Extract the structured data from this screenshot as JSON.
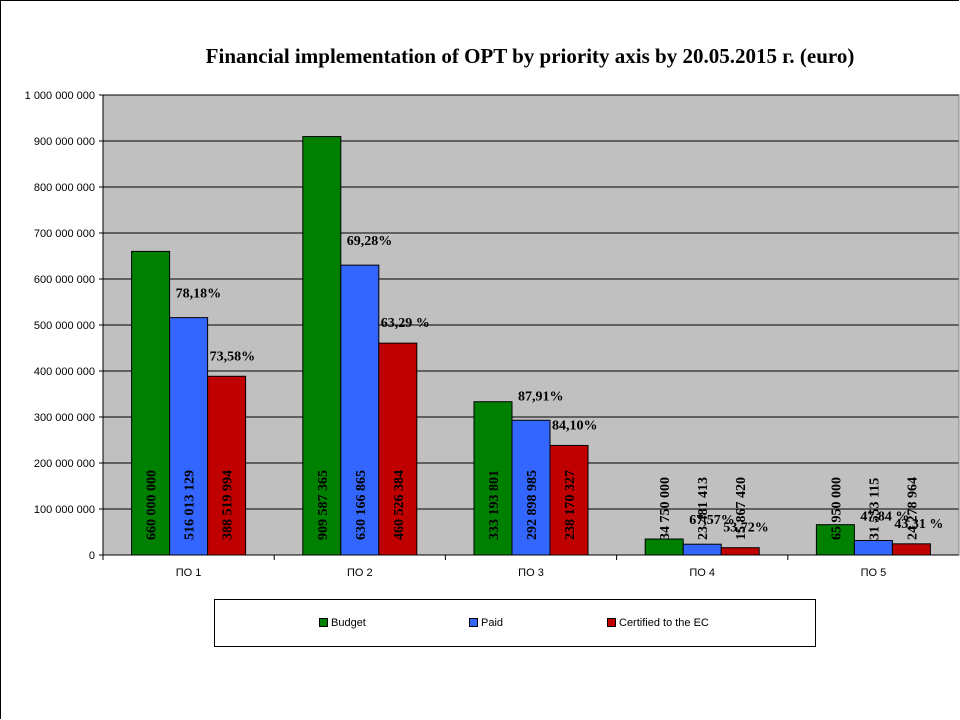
{
  "chart_data": {
    "type": "bar",
    "title": "Financial implementation of OPT by priority axis by 20.05.2015 г. (euro)",
    "categories": [
      "ПО 1",
      "ПО 2",
      "ПО 3",
      "ПО 4",
      "ПО 5"
    ],
    "ylim": [
      0,
      1000000000
    ],
    "yticks": [
      "0",
      "100 000 000",
      "200 000 000",
      "300 000 000",
      "400 000 000",
      "500 000 000",
      "600 000 000",
      "700 000 000",
      "800 000 000",
      "900 000 000",
      "1 000 000 000"
    ],
    "ytick_values": [
      0,
      100000000,
      200000000,
      300000000,
      400000000,
      500000000,
      600000000,
      700000000,
      800000000,
      900000000,
      1000000000
    ],
    "grid": true,
    "legend": "bottom",
    "series": [
      {
        "name": "Budget",
        "color": "#008000",
        "values": [
          660000000,
          909587365,
          333193801,
          34750000,
          65950000
        ],
        "labels": [
          "660 000 000",
          "909 587 365",
          "333 193 801",
          "34 750 000",
          "65 950 000"
        ]
      },
      {
        "name": "Paid",
        "color": "#3366ff",
        "values": [
          516013129,
          630166865,
          292898985,
          23481413,
          31553115
        ],
        "labels": [
          "516 013 129",
          "630 166 865",
          "292 898 985",
          "23 481 413",
          "31 553 115"
        ]
      },
      {
        "name": "Certified to the EC",
        "color": "#c00000",
        "values": [
          388519994,
          460526384,
          238170327,
          15867420,
          24278964
        ],
        "labels": [
          "388 519 994",
          "460 526 384",
          "238 170 327",
          "15 867 420",
          "24 278 964"
        ]
      }
    ],
    "annotations": {
      "paid_pct": [
        "78,18%",
        "69,28%",
        "87,91%",
        "67,57%",
        "47,84 %"
      ],
      "certified_pct": [
        "73,58%",
        "63,29 %",
        "84,10%",
        "53,72%",
        "43,31 %"
      ]
    },
    "plot_background": "#c0c0c0"
  }
}
